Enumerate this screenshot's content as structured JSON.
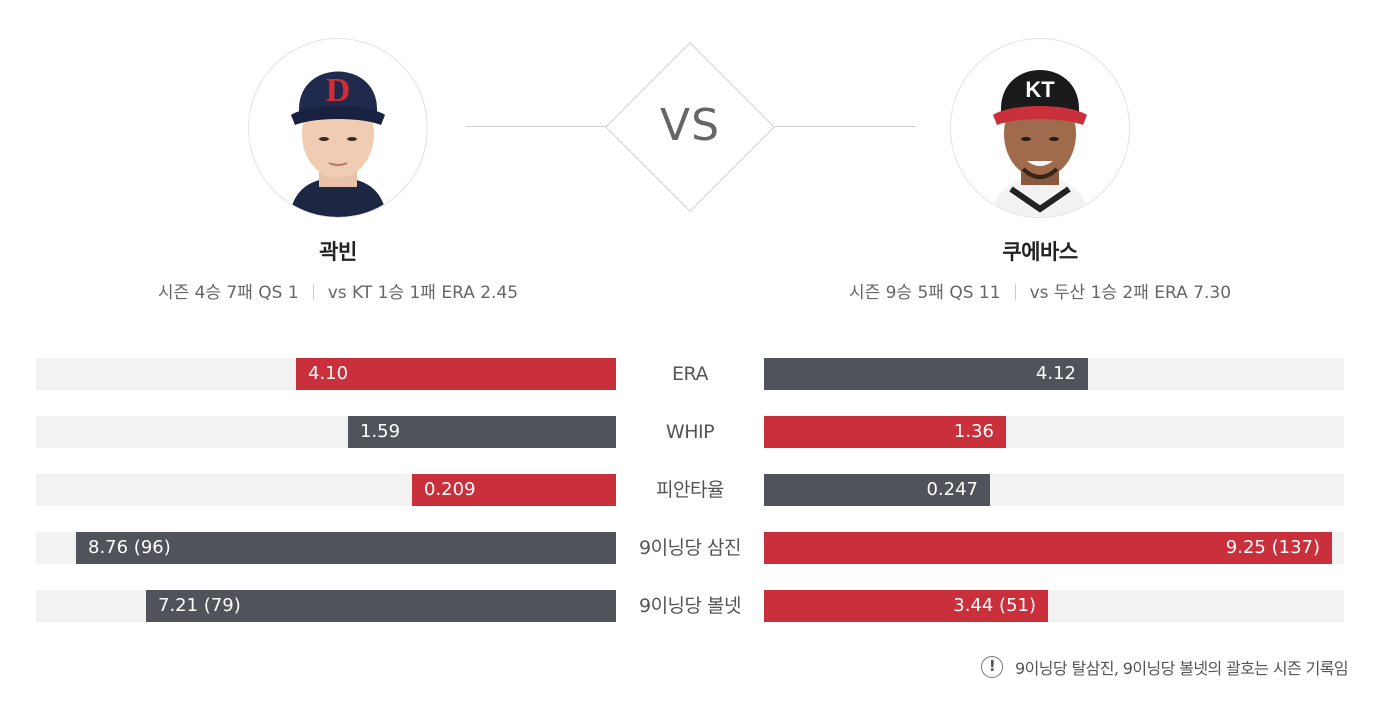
{
  "vs_label": "VS",
  "players": {
    "left": {
      "name": "곽빈",
      "stats_season": "시즌  4승 7패 QS 1",
      "stats_vs": "vs KT  1승 1패 ERA 2.45",
      "team_logo": "D"
    },
    "right": {
      "name": "쿠에바스",
      "stats_season": "시즌  9승 5패 QS 11",
      "stats_vs": "vs 두산  1승 2패 ERA 7.30",
      "team_logo": "KT"
    }
  },
  "colors": {
    "better": "#c9303b",
    "worse": "#50535a",
    "track": "#f2f2f2"
  },
  "metrics": [
    {
      "label": "ERA",
      "left": {
        "text": "4.10",
        "fill": 0.552,
        "color": "red"
      },
      "right": {
        "text": "4.12",
        "fill": 0.559,
        "color": "dark"
      }
    },
    {
      "label": "WHIP",
      "left": {
        "text": "1.59",
        "fill": 0.462,
        "color": "dark"
      },
      "right": {
        "text": "1.36",
        "fill": 0.417,
        "color": "red"
      }
    },
    {
      "label": "피안타율",
      "left": {
        "text": "0.209",
        "fill": 0.352,
        "color": "red"
      },
      "right": {
        "text": "0.247",
        "fill": 0.39,
        "color": "dark"
      }
    },
    {
      "label": "9이닝당 삼진",
      "left": {
        "text": "8.76 (96)",
        "fill": 0.931,
        "color": "dark"
      },
      "right": {
        "text": "9.25 (137)",
        "fill": 0.979,
        "color": "red"
      }
    },
    {
      "label": "9이닝당 볼넷",
      "left": {
        "text": "7.21 (79)",
        "fill": 0.81,
        "color": "dark"
      },
      "right": {
        "text": "3.44 (51)",
        "fill": 0.49,
        "color": "red"
      }
    }
  ],
  "footnote": "9이닝당 탈삼진, 9이닝당 볼넷의 괄호는 시즌 기록임"
}
